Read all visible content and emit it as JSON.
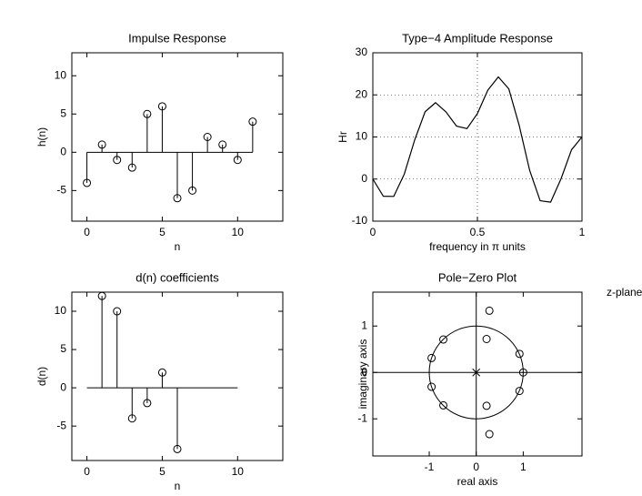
{
  "chart_data": [
    {
      "type": "stem",
      "title": "Impulse Response",
      "xlabel": "n",
      "ylabel": "h(n)",
      "x": [
        0,
        1,
        2,
        3,
        4,
        5,
        6,
        7,
        8,
        9,
        10,
        11
      ],
      "values": [
        -4,
        1,
        -1,
        -2,
        5,
        6,
        -6,
        -5,
        2,
        1,
        -1,
        4
      ],
      "baseline": [
        0,
        11
      ],
      "xlim": [
        -1,
        13
      ],
      "ylim": [
        -9,
        13
      ],
      "xticks": [
        0,
        5,
        10
      ],
      "yticks": [
        -5,
        0,
        5,
        10
      ]
    },
    {
      "type": "line",
      "title": "Type−4 Amplitude Response",
      "xlabel": "frequency in π units",
      "ylabel": "Hr",
      "x": [
        0,
        0.05,
        0.1,
        0.15,
        0.2,
        0.25,
        0.3,
        0.35,
        0.4,
        0.45,
        0.5,
        0.55,
        0.6,
        0.65,
        0.7,
        0.75,
        0.8,
        0.85,
        0.9,
        0.95,
        1
      ],
      "values": [
        0,
        -4.08,
        -4.12,
        1.13,
        9.27,
        16.0,
        18.16,
        15.93,
        12.59,
        11.98,
        15.56,
        21.13,
        24.27,
        21.44,
        12.71,
        2.03,
        -5.15,
        -5.49,
        0.08,
        6.96,
        10
      ],
      "xlim": [
        0,
        1
      ],
      "ylim": [
        -10,
        30
      ],
      "xticks": [
        0,
        0.5,
        1
      ],
      "yticks": [
        -10,
        0,
        10,
        20,
        30
      ],
      "grid": true
    },
    {
      "type": "stem",
      "title": "d(n) coefficients",
      "xlabel": "n",
      "ylabel": "d(n)",
      "x": [
        1,
        2,
        3,
        4,
        5,
        6
      ],
      "values": [
        12,
        10,
        -4,
        -2,
        2,
        -8
      ],
      "baseline": [
        0,
        10
      ],
      "xlim": [
        -1,
        13
      ],
      "ylim": [
        -9.5,
        12.5
      ],
      "xticks": [
        0,
        5,
        10
      ],
      "yticks": [
        -5,
        0,
        5,
        10
      ]
    },
    {
      "type": "pole-zero",
      "title": "Pole−Zero Plot",
      "xlabel": "real axis",
      "ylabel": "imaginary axis",
      "annotation": "z-plane",
      "zeros": {
        "x": [
          -0.95,
          -0.95,
          -0.7,
          -0.7,
          0.22,
          0.22,
          0.28,
          0.28,
          0.92,
          0.92,
          1
        ],
        "y": [
          0.31,
          -0.31,
          0.71,
          -0.71,
          0.72,
          -0.72,
          1.33,
          -1.33,
          0.4,
          -0.4,
          0
        ]
      },
      "poles": {
        "x": [
          0
        ],
        "y": [
          0
        ]
      },
      "xlim": [
        -2.2,
        2.25
      ],
      "ylim": [
        -1.8,
        1.73
      ],
      "xticks": [
        -1,
        0,
        1
      ],
      "yticks": [
        -1,
        0,
        1
      ]
    }
  ]
}
